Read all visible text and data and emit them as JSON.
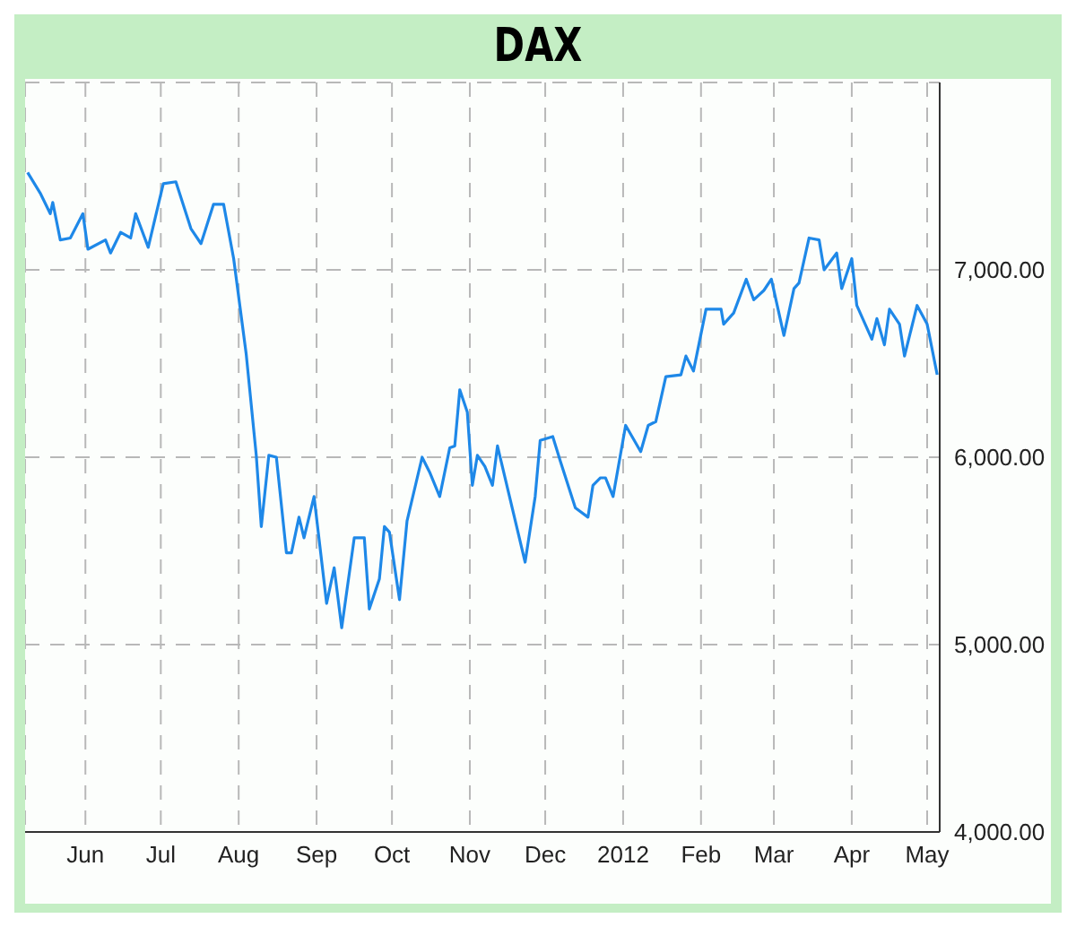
{
  "chart_data": {
    "type": "line",
    "title": "DAX",
    "x": [
      "2011-05-09",
      "2011-05-14",
      "2011-05-18",
      "2011-05-19",
      "2011-05-22",
      "2011-05-26",
      "2011-05-31",
      "2011-06-02",
      "2011-06-09",
      "2011-06-11",
      "2011-06-15",
      "2011-06-19",
      "2011-06-21",
      "2011-06-26",
      "2011-07-02",
      "2011-07-07",
      "2011-07-13",
      "2011-07-17",
      "2011-07-22",
      "2011-07-26",
      "2011-07-30",
      "2011-08-04",
      "2011-08-08",
      "2011-08-10",
      "2011-08-13",
      "2011-08-16",
      "2011-08-20",
      "2011-08-22",
      "2011-08-25",
      "2011-08-27",
      "2011-08-31",
      "2011-09-05",
      "2011-09-08",
      "2011-09-11",
      "2011-09-16",
      "2011-09-20",
      "2011-09-22",
      "2011-09-26",
      "2011-09-28",
      "2011-09-30",
      "2011-10-04",
      "2011-10-07",
      "2011-10-13",
      "2011-10-16",
      "2011-10-20",
      "2011-10-24",
      "2011-10-26",
      "2011-10-28",
      "2011-10-31",
      "2011-11-02",
      "2011-11-04",
      "2011-11-07",
      "2011-11-10",
      "2011-11-12",
      "2011-11-23",
      "2011-11-27",
      "2011-11-29",
      "2011-12-04",
      "2011-12-07",
      "2011-12-13",
      "2011-12-18",
      "2011-12-20",
      "2011-12-23",
      "2011-12-25",
      "2011-12-28",
      "2012-01-02",
      "2012-01-08",
      "2012-01-11",
      "2012-01-14",
      "2012-01-18",
      "2012-01-24",
      "2012-01-26",
      "2012-01-29",
      "2012-02-03",
      "2012-02-09",
      "2012-02-10",
      "2012-02-14",
      "2012-02-19",
      "2012-02-22",
      "2012-02-26",
      "2012-02-29",
      "2012-03-05",
      "2012-03-09",
      "2012-03-11",
      "2012-03-15",
      "2012-03-19",
      "2012-03-21",
      "2012-03-26",
      "2012-03-28",
      "2012-04-01",
      "2012-04-03",
      "2012-04-09",
      "2012-04-11",
      "2012-04-14",
      "2012-04-16",
      "2012-04-20",
      "2012-04-22",
      "2012-04-27",
      "2012-05-01",
      "2012-05-05"
    ],
    "series": [
      {
        "color": "#1e88e8",
        "values": [
          7520,
          7410,
          7300,
          7360,
          7160,
          7170,
          7300,
          7110,
          7160,
          7090,
          7200,
          7170,
          7300,
          7120,
          7460,
          7470,
          7220,
          7140,
          7350,
          7350,
          7060,
          6550,
          6010,
          5630,
          6010,
          6000,
          5490,
          5490,
          5680,
          5570,
          5790,
          5220,
          5410,
          5090,
          5570,
          5570,
          5190,
          5350,
          5630,
          5600,
          5240,
          5660,
          6000,
          5920,
          5790,
          6050,
          6060,
          6360,
          6240,
          5850,
          6010,
          5950,
          5850,
          6060,
          5440,
          5790,
          6090,
          6110,
          5980,
          5730,
          5680,
          5850,
          5890,
          5890,
          5790,
          6170,
          6030,
          6170,
          6190,
          6430,
          6440,
          6540,
          6460,
          6790,
          6790,
          6710,
          6770,
          6950,
          6840,
          6890,
          6950,
          6650,
          6900,
          6930,
          7170,
          7160,
          7000,
          7090,
          6900,
          7060,
          6810,
          6630,
          6740,
          6600,
          6790,
          6710,
          6540,
          6810,
          6710,
          6440
        ]
      }
    ],
    "xlim": [
      "2011-05-08",
      "2012-05-06"
    ],
    "xticks": [
      {
        "value": "2011-06-01",
        "label": "Jun"
      },
      {
        "value": "2011-07-01",
        "label": "Jul"
      },
      {
        "value": "2011-08-01",
        "label": "Aug"
      },
      {
        "value": "2011-09-01",
        "label": "Sep"
      },
      {
        "value": "2011-10-01",
        "label": "Oct"
      },
      {
        "value": "2011-11-01",
        "label": "Nov"
      },
      {
        "value": "2011-12-01",
        "label": "Dec"
      },
      {
        "value": "2012-01-01",
        "label": "2012"
      },
      {
        "value": "2012-02-01",
        "label": "Feb"
      },
      {
        "value": "2012-03-01",
        "label": "Mar"
      },
      {
        "value": "2012-04-01",
        "label": "Apr"
      },
      {
        "value": "2012-05-01",
        "label": "May"
      }
    ],
    "ylim": [
      4000,
      8000
    ],
    "yticks": [
      {
        "value": 4000,
        "label": "4,000.00"
      },
      {
        "value": 5000,
        "label": "5,000.00"
      },
      {
        "value": 6000,
        "label": "6,000.00"
      },
      {
        "value": 7000,
        "label": "7,000.00"
      }
    ],
    "grid": true,
    "marker": "none",
    "line_style": "solid"
  }
}
